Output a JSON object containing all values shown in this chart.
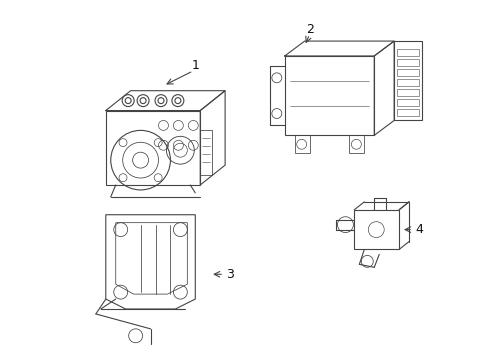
{
  "background_color": "#ffffff",
  "line_color": "#444444",
  "lw": 0.8,
  "fig_width": 4.89,
  "fig_height": 3.6,
  "dpi": 100
}
